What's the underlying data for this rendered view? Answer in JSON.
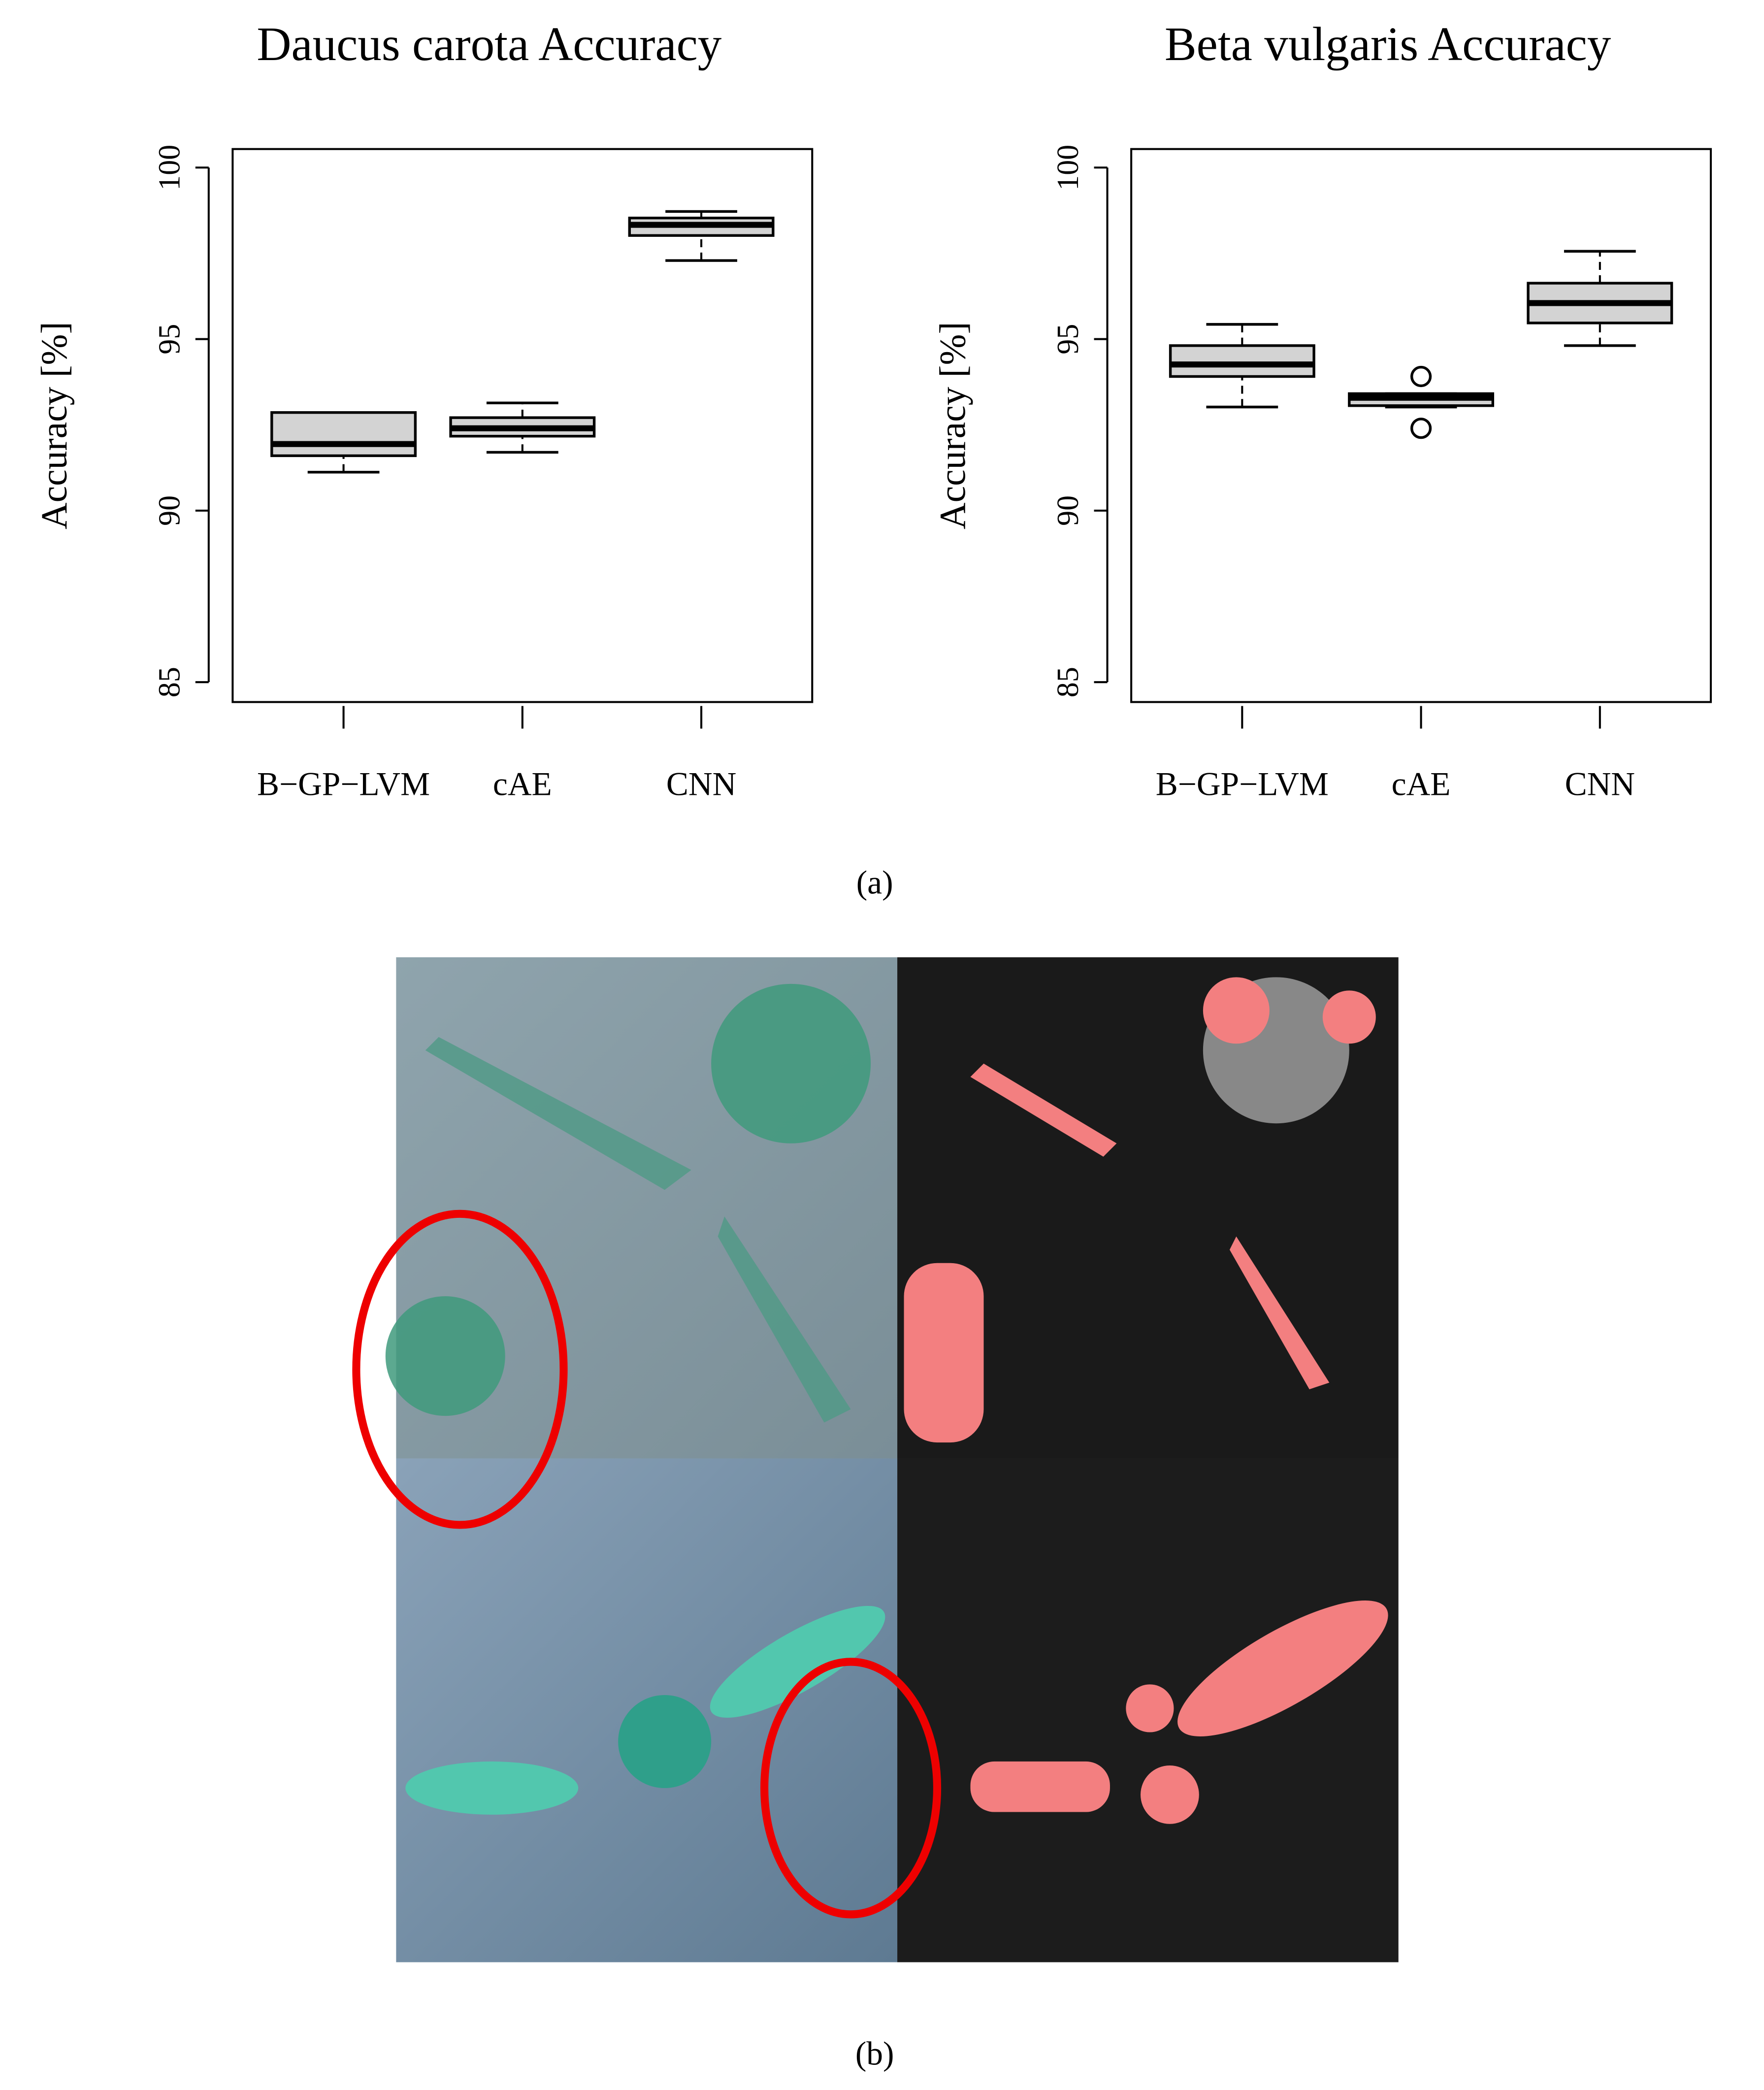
{
  "chart_data": [
    {
      "type": "box",
      "title": "Daucus carota Accuracy",
      "y_label": "Accuracy [%]",
      "categories": [
        "B−GP−LVM",
        "cAE",
        "CNN"
      ],
      "boxes": [
        {
          "min": 91.12,
          "q1": 91.6,
          "median": 91.94,
          "q3": 92.86,
          "max": 92.86
        },
        {
          "min": 91.7,
          "q1": 92.17,
          "median": 92.4,
          "q3": 92.71,
          "max": 93.14
        },
        {
          "min": 97.29,
          "q1": 98.02,
          "median": 98.33,
          "q3": 98.53,
          "max": 98.72
        }
      ],
      "color": "#d3d3d3",
      "ylim": [
        84.42,
        100.54
      ],
      "yticks": [
        85,
        90,
        95,
        100
      ]
    },
    {
      "type": "box",
      "title": "Beta vulgaris Accuracy",
      "y_label": "Accuracy [%]",
      "categories": [
        "B−GP−LVM",
        "cAE",
        "CNN"
      ],
      "boxes": [
        {
          "min": 93.02,
          "q1": 93.91,
          "median": 94.26,
          "q3": 94.81,
          "max": 95.43
        },
        {
          "min": 93.02,
          "q1": 93.06,
          "median": 93.29,
          "q3": 93.41,
          "max": 93.41,
          "outliers": [
            93.91,
            92.4
          ]
        },
        {
          "min": 94.81,
          "q1": 95.47,
          "median": 96.05,
          "q3": 96.63,
          "max": 97.56
        }
      ],
      "color": "#d3d3d3",
      "ylim": [
        84.42,
        100.54
      ],
      "yticks": [
        85,
        90,
        95,
        100
      ]
    }
  ],
  "captions": {
    "a": "(a)",
    "b": "(b)"
  }
}
